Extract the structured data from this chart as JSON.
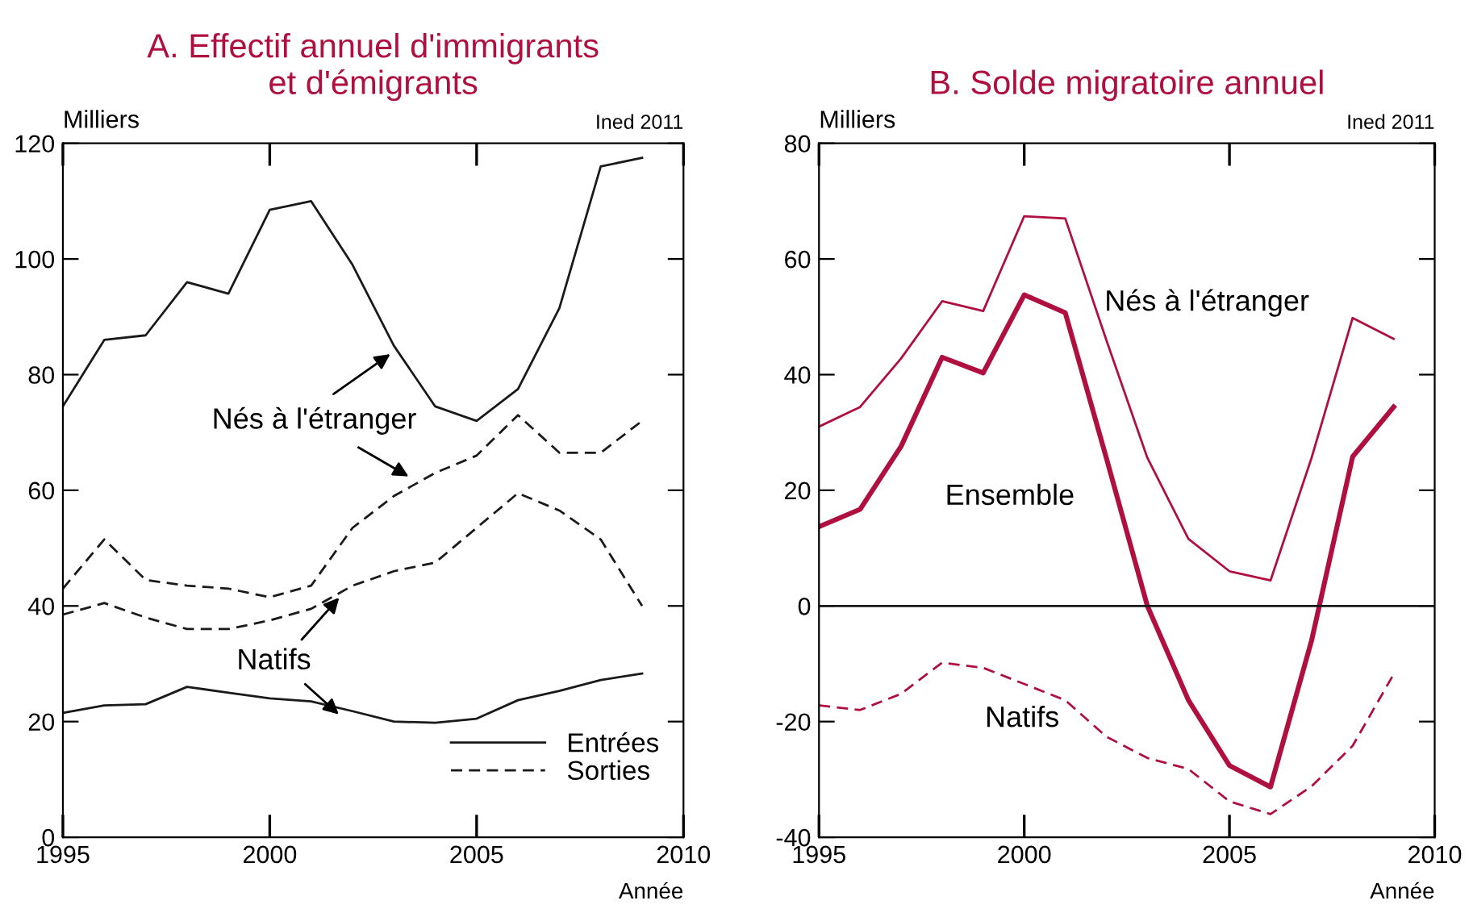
{
  "chart_data": [
    {
      "type": "line",
      "title": "A. Effectif annuel d'immigrants\net d'émigrants",
      "ylabel": "Milliers",
      "xlabel": "Année",
      "x": [
        1995,
        1996,
        1997,
        1998,
        1999,
        2000,
        2001,
        2002,
        2003,
        2004,
        2005,
        2006,
        2007,
        2008,
        2009
      ],
      "series": [
        {
          "name": "Entrées",
          "color": "#1a1a1a",
          "line_style": "solid",
          "values": [
            74.5,
            86,
            86.8,
            96,
            94,
            108.5,
            110,
            99,
            85,
            74.5,
            72,
            77.5,
            91.5,
            116,
            117.5
          ]
        },
        {
          "name": "Sorties",
          "color": "#1a1a1a",
          "line_style": "dashed",
          "values": [
            43,
            51.5,
            44.5,
            43.5,
            43,
            41.5,
            43.5,
            53.5,
            59,
            63,
            66,
            73,
            66.5,
            66.5,
            72
          ]
        },
        {
          "color": "#1a1a1a",
          "line_style": "dashed",
          "values": [
            38.5,
            40.5,
            38,
            36,
            36,
            37.5,
            39.5,
            43.5,
            46,
            47.5,
            53.5,
            59.5,
            56.5,
            51.5,
            40
          ]
        },
        {
          "color": "#1a1a1a",
          "line_style": "solid",
          "values": [
            21.5,
            22.8,
            23,
            26,
            25,
            24,
            23.5,
            21.8,
            20,
            19.8,
            20.5,
            23.7,
            25.3,
            27.2,
            28.3
          ]
        }
      ],
      "xlim": [
        1995,
        2010
      ],
      "xticks": [
        1995,
        2000,
        2005,
        2010
      ],
      "ylim": [
        0,
        120
      ],
      "yticks": [
        0,
        20,
        40,
        60,
        80,
        100,
        120
      ],
      "legend": "bottom right",
      "grid": false,
      "annotations": [
        "Ined 2011",
        {
          "text": "Nés à l'étranger",
          "x": 2003,
          "y": 84
        },
        {
          "text": "Natifs",
          "x": 2001.75,
          "y": 42
        }
      ]
    },
    {
      "type": "line",
      "title": "B. Solde migratoire annuel",
      "ylabel": "Milliers",
      "xlabel": "Année",
      "x": [
        1995,
        1996,
        1997,
        1998,
        1999,
        2000,
        2001,
        2002,
        2003,
        2004,
        2005,
        2006,
        2007,
        2008,
        2009
      ],
      "series": [
        {
          "name": "Nés à l'étranger",
          "color": "#b0103f",
          "line_style": "solid",
          "values": [
            31,
            34.4,
            42.8,
            52.7,
            51,
            67.4,
            67,
            46,
            25.6,
            11.6,
            6,
            4.4,
            25.6,
            49.8,
            46.2
          ]
        },
        {
          "name": "Ensemble",
          "color": "#b0103f",
          "line_style": "solid",
          "values": [
            13.7,
            16.7,
            27.6,
            43,
            40.3,
            53.8,
            50.7,
            25.6,
            0,
            -16.3,
            -27.6,
            -31.3,
            -6,
            25.8,
            34.4
          ]
        },
        {
          "name": "Natifs",
          "color": "#b0103f",
          "line_style": "dashed",
          "values": [
            -17.2,
            -18,
            -15.2,
            -9.8,
            -10.7,
            -13.5,
            -16.3,
            -22.6,
            -26.3,
            -28.2,
            -33.8,
            -36,
            -31.2,
            -24.2,
            -11.8
          ]
        }
      ],
      "xlim": [
        1995,
        2010
      ],
      "xticks": [
        1995,
        2000,
        2005,
        2010
      ],
      "ylim": [
        -40,
        80
      ],
      "yticks": [
        -40,
        -20,
        0,
        20,
        40,
        60,
        80
      ],
      "ref_lines": [
        {
          "axis": "y",
          "value": 0,
          "color": "#1a1a1a"
        }
      ],
      "legend": false,
      "grid": false,
      "annotations": [
        "Ined 2011"
      ]
    }
  ]
}
